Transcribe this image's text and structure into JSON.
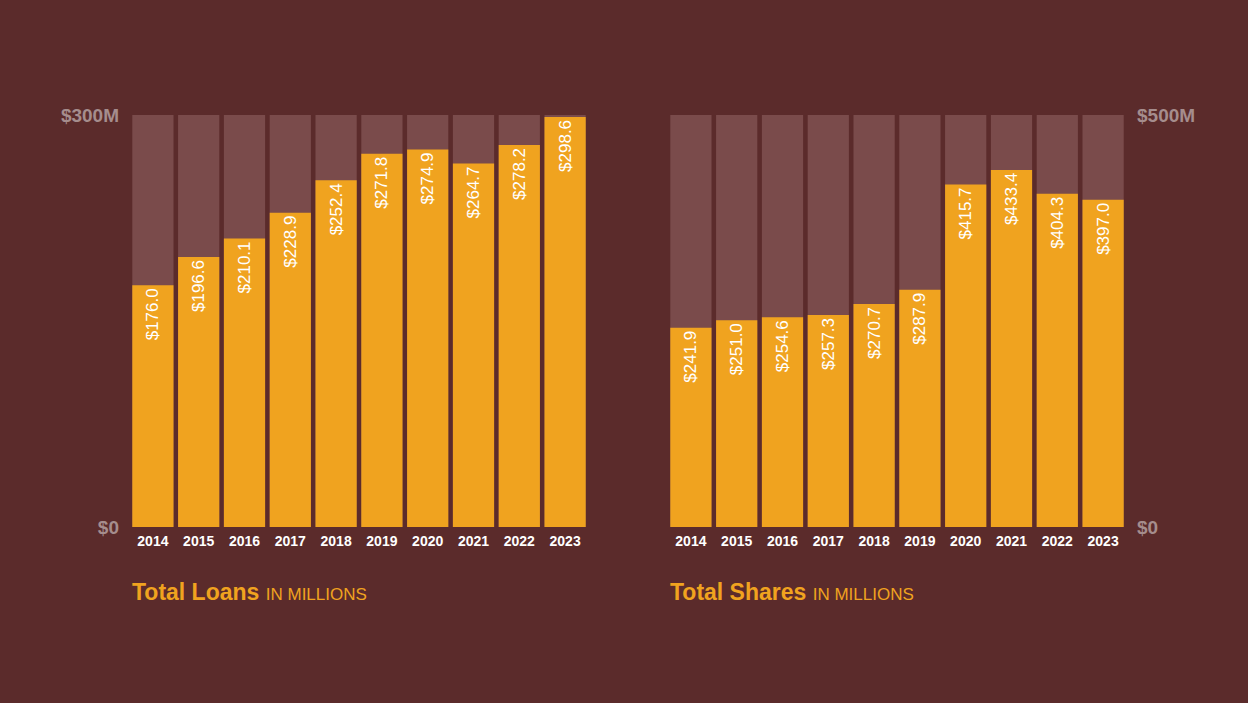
{
  "chart_data": [
    {
      "type": "bar",
      "title": "Total Loans",
      "subtitle": "IN MILLIONS",
      "categories": [
        "2014",
        "2015",
        "2016",
        "2017",
        "2018",
        "2019",
        "2020",
        "2021",
        "2022",
        "2023"
      ],
      "values": [
        176.0,
        196.6,
        210.1,
        228.9,
        252.4,
        271.8,
        274.9,
        264.7,
        278.2,
        298.6
      ],
      "value_labels": [
        "$176.0",
        "$196.6",
        "$210.1",
        "$228.9",
        "$252.4",
        "$271.8",
        "$274.9",
        "$264.7",
        "$278.2",
        "$298.6"
      ],
      "color": "#f0a31f",
      "data_labels": true,
      "grid": false,
      "ylim": [
        0,
        300
      ],
      "yticks": [
        {
          "value": 0,
          "label": "$0"
        },
        {
          "value": 300,
          "label": "$300M"
        }
      ]
    },
    {
      "type": "bar",
      "title": "Total Shares",
      "subtitle": "IN MILLIONS",
      "categories": [
        "2014",
        "2015",
        "2016",
        "2017",
        "2018",
        "2019",
        "2020",
        "2021",
        "2022",
        "2023"
      ],
      "values": [
        241.9,
        251.0,
        254.6,
        257.3,
        270.7,
        287.9,
        415.7,
        433.4,
        404.3,
        397.0
      ],
      "value_labels": [
        "$241.9",
        "$251.0",
        "$254.6",
        "$257.3",
        "$270.7",
        "$287.9",
        "$415.7",
        "$433.4",
        "$404.3",
        "$397.0"
      ],
      "color": "#f0a31f",
      "data_labels": true,
      "grid": false,
      "ylim": [
        0,
        500
      ],
      "yticks": [
        {
          "value": 0,
          "label": "$0"
        },
        {
          "value": 500,
          "label": "$500M"
        }
      ]
    }
  ]
}
